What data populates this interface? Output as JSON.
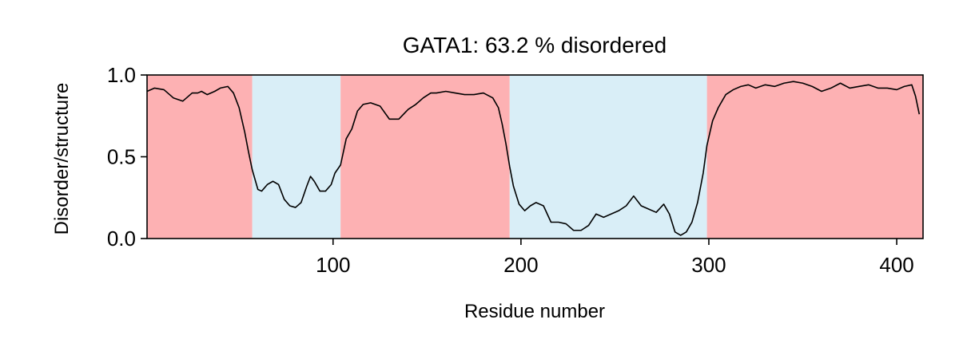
{
  "chart_data": {
    "type": "line",
    "title": "GATA1: 63.2 % disordered",
    "xlabel": "Residue number",
    "ylabel": "Disorder/structure",
    "xlim": [
      1,
      414
    ],
    "ylim": [
      0.0,
      1.0
    ],
    "x_ticks": [
      100,
      200,
      300,
      400
    ],
    "x_tick_labels": [
      "100",
      "200",
      "300",
      "400"
    ],
    "y_ticks": [
      0.0,
      0.5,
      1.0
    ],
    "y_tick_labels": [
      "0.0",
      "0.5",
      "1.0"
    ],
    "grid": false,
    "regions": [
      {
        "start": 1,
        "end": 57,
        "kind": "disordered",
        "color": "#fdb1b3"
      },
      {
        "start": 57,
        "end": 104,
        "kind": "structured",
        "color": "#d9eef7"
      },
      {
        "start": 104,
        "end": 194,
        "kind": "disordered",
        "color": "#fdb1b3"
      },
      {
        "start": 194,
        "end": 299,
        "kind": "structured",
        "color": "#d9eef7"
      },
      {
        "start": 299,
        "end": 414,
        "kind": "disordered",
        "color": "#fdb1b3"
      }
    ],
    "series": [
      {
        "color": "#000000",
        "x": [
          1,
          5,
          10,
          15,
          20,
          25,
          28,
          30,
          33,
          37,
          40,
          44,
          47,
          50,
          53,
          55,
          57,
          60,
          62,
          65,
          68,
          71,
          74,
          77,
          80,
          83,
          86,
          88,
          90,
          93,
          96,
          99,
          101,
          104,
          107,
          110,
          113,
          116,
          120,
          125,
          130,
          135,
          140,
          144,
          148,
          152,
          155,
          160,
          165,
          170,
          175,
          180,
          185,
          188,
          190,
          192,
          194,
          196,
          199,
          202,
          205,
          208,
          212,
          216,
          220,
          224,
          228,
          232,
          236,
          240,
          244,
          248,
          252,
          256,
          260,
          264,
          268,
          272,
          276,
          279,
          282,
          285,
          288,
          291,
          294,
          297,
          299,
          302,
          305,
          309,
          313,
          317,
          321,
          325,
          330,
          335,
          340,
          345,
          350,
          355,
          360,
          365,
          370,
          375,
          380,
          385,
          390,
          395,
          400,
          404,
          408,
          410,
          412
        ],
        "y": [
          0.9,
          0.92,
          0.91,
          0.86,
          0.84,
          0.89,
          0.89,
          0.9,
          0.88,
          0.9,
          0.92,
          0.93,
          0.89,
          0.8,
          0.65,
          0.53,
          0.42,
          0.3,
          0.29,
          0.33,
          0.35,
          0.33,
          0.24,
          0.2,
          0.19,
          0.22,
          0.32,
          0.38,
          0.35,
          0.29,
          0.29,
          0.33,
          0.4,
          0.45,
          0.61,
          0.67,
          0.78,
          0.82,
          0.83,
          0.81,
          0.73,
          0.73,
          0.79,
          0.82,
          0.86,
          0.89,
          0.89,
          0.9,
          0.89,
          0.88,
          0.88,
          0.89,
          0.86,
          0.8,
          0.7,
          0.58,
          0.44,
          0.32,
          0.21,
          0.17,
          0.2,
          0.22,
          0.2,
          0.1,
          0.1,
          0.09,
          0.05,
          0.05,
          0.08,
          0.15,
          0.13,
          0.15,
          0.17,
          0.2,
          0.26,
          0.2,
          0.18,
          0.16,
          0.21,
          0.15,
          0.04,
          0.02,
          0.04,
          0.1,
          0.22,
          0.4,
          0.57,
          0.72,
          0.8,
          0.88,
          0.91,
          0.93,
          0.94,
          0.92,
          0.94,
          0.93,
          0.95,
          0.96,
          0.95,
          0.93,
          0.9,
          0.92,
          0.95,
          0.92,
          0.93,
          0.94,
          0.92,
          0.92,
          0.91,
          0.93,
          0.94,
          0.87,
          0.76
        ]
      }
    ]
  }
}
